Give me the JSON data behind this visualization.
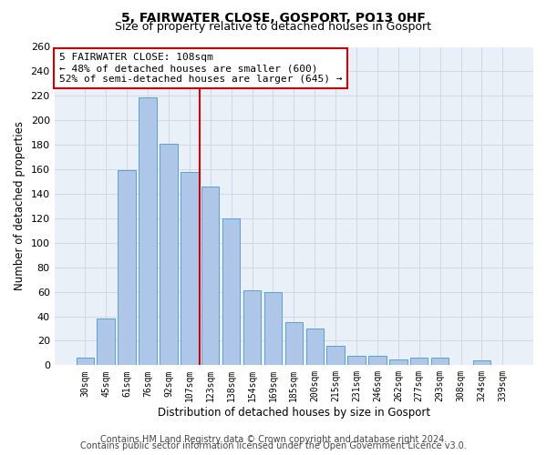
{
  "title_line1": "5, FAIRWATER CLOSE, GOSPORT, PO13 0HF",
  "title_line2": "Size of property relative to detached houses in Gosport",
  "xlabel": "Distribution of detached houses by size in Gosport",
  "ylabel": "Number of detached properties",
  "categories": [
    "30sqm",
    "45sqm",
    "61sqm",
    "76sqm",
    "92sqm",
    "107sqm",
    "123sqm",
    "138sqm",
    "154sqm",
    "169sqm",
    "185sqm",
    "200sqm",
    "215sqm",
    "231sqm",
    "246sqm",
    "262sqm",
    "277sqm",
    "293sqm",
    "308sqm",
    "324sqm",
    "339sqm"
  ],
  "values": [
    6,
    38,
    159,
    219,
    181,
    158,
    146,
    120,
    61,
    60,
    35,
    30,
    16,
    8,
    8,
    5,
    6,
    6,
    0,
    4,
    0
  ],
  "bar_color": "#aec6e8",
  "bar_edge_color": "#5a9fd4",
  "vline_x": 5.5,
  "vline_color": "#cc0000",
  "annotation_line1": "5 FAIRWATER CLOSE: 108sqm",
  "annotation_line2": "← 48% of detached houses are smaller (600)",
  "annotation_line3": "52% of semi-detached houses are larger (645) →",
  "annotation_box_color": "#ffffff",
  "annotation_box_edge_color": "#cc0000",
  "annotation_fontsize": 8,
  "ylim": [
    0,
    260
  ],
  "yticks": [
    0,
    20,
    40,
    60,
    80,
    100,
    120,
    140,
    160,
    180,
    200,
    220,
    240,
    260
  ],
  "grid_color": "#d0d8e8",
  "background_color": "#eaf0f8",
  "footer_line1": "Contains HM Land Registry data © Crown copyright and database right 2024.",
  "footer_line2": "Contains public sector information licensed under the Open Government Licence v3.0.",
  "title1_fontsize": 10,
  "title2_fontsize": 9,
  "xlabel_fontsize": 8.5,
  "ylabel_fontsize": 8.5,
  "footer_fontsize": 7
}
